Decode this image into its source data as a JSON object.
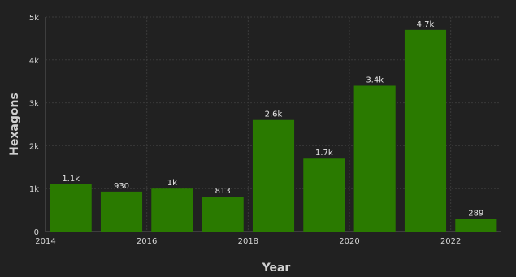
{
  "chart_data": {
    "type": "bar",
    "categories": [
      "2014",
      "2015",
      "2016",
      "2017",
      "2018",
      "2019",
      "2020",
      "2021",
      "2022"
    ],
    "values": [
      1100,
      930,
      1000,
      813,
      2600,
      1700,
      3400,
      4700,
      289
    ],
    "data_labels": [
      "1.1k",
      "930",
      "1k",
      "813",
      "2.6k",
      "1.7k",
      "3.4k",
      "4.7k",
      "289"
    ],
    "x_tick_labels": [
      {
        "label": "2014",
        "x": 2014
      },
      {
        "label": "2016",
        "x": 2016
      },
      {
        "label": "2018",
        "x": 2018
      },
      {
        "label": "2020",
        "x": 2020
      },
      {
        "label": "2022",
        "x": 2022
      }
    ],
    "y_ticks": [
      0,
      1000,
      2000,
      3000,
      4000,
      5000
    ],
    "y_tick_labels": [
      "0",
      "1k",
      "2k",
      "3k",
      "4k",
      "5k"
    ],
    "xlabel": "Year",
    "ylabel": "Hexagons",
    "ylim": [
      0,
      5000
    ],
    "grid": true,
    "bar_color": "#2a7a00",
    "background": "#212121"
  }
}
